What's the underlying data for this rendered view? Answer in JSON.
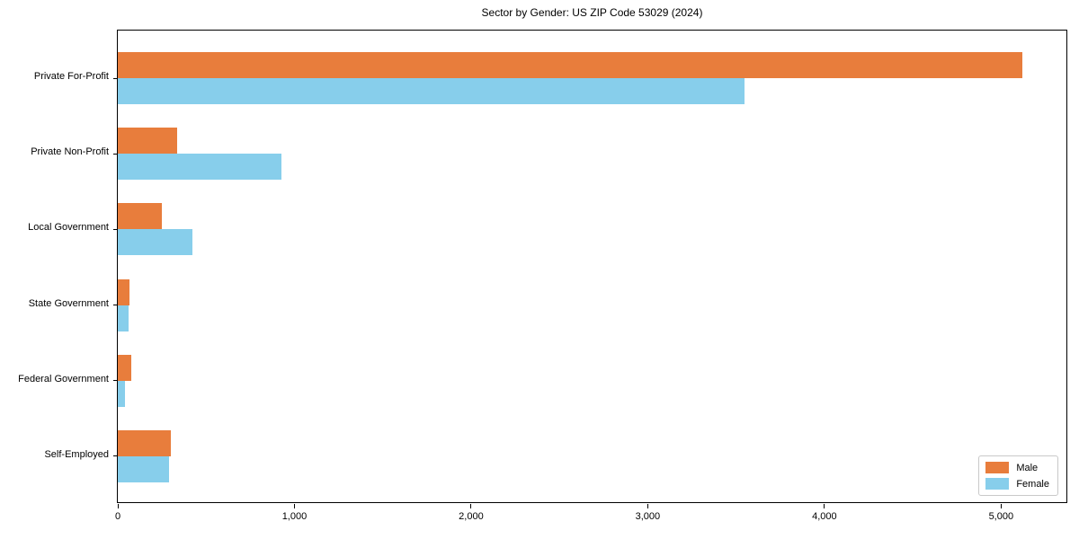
{
  "chart_data": {
    "type": "bar",
    "orientation": "horizontal",
    "title": "Sector by Gender: US ZIP Code 53029 (2024)",
    "categories": [
      "Private For-Profit",
      "Private Non-Profit",
      "Local Government",
      "State Government",
      "Federal Government",
      "Self-Employed"
    ],
    "series": [
      {
        "name": "Male",
        "color": "#e87d3c",
        "values": [
          5120,
          335,
          250,
          65,
          75,
          300
        ]
      },
      {
        "name": "Female",
        "color": "#87ceeb",
        "values": [
          3550,
          925,
          425,
          60,
          40,
          290
        ]
      }
    ],
    "xlabel": "",
    "ylabel": "",
    "xlim": [
      0,
      5380
    ],
    "xticks": [
      0,
      1000,
      2000,
      3000,
      4000,
      5000
    ],
    "xtick_labels": [
      "0",
      "1,000",
      "2,000",
      "3,000",
      "4,000",
      "5,000"
    ],
    "grid": false,
    "legend": {
      "position": "lower-right",
      "entries": [
        "Male",
        "Female"
      ]
    }
  }
}
